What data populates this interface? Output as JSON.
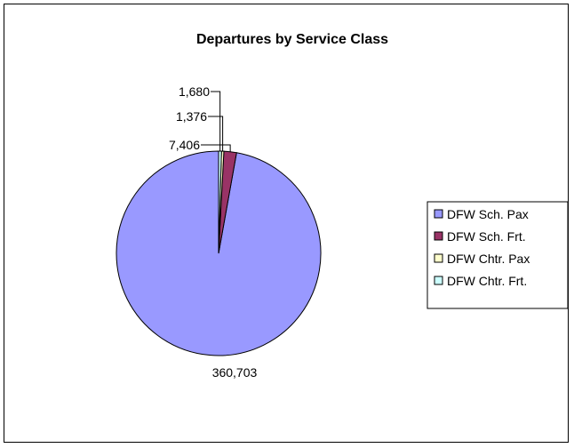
{
  "chart_data": {
    "type": "pie",
    "title": "Departures by Service Class",
    "categories": [
      "DFW Sch. Pax",
      "DFW Sch. Frt.",
      "DFW Chtr. Pax",
      "DFW Chtr. Frt."
    ],
    "values": [
      360703,
      7406,
      1376,
      1680
    ],
    "value_labels": [
      "360,703",
      "7,406",
      "1,376",
      "1,680"
    ],
    "colors": [
      "#9999FF",
      "#993366",
      "#FFFFCC",
      "#CCFFFF"
    ],
    "legend_position": "right",
    "start_angle": "12 o'clock",
    "direction": "counterclockwise",
    "border": true
  }
}
